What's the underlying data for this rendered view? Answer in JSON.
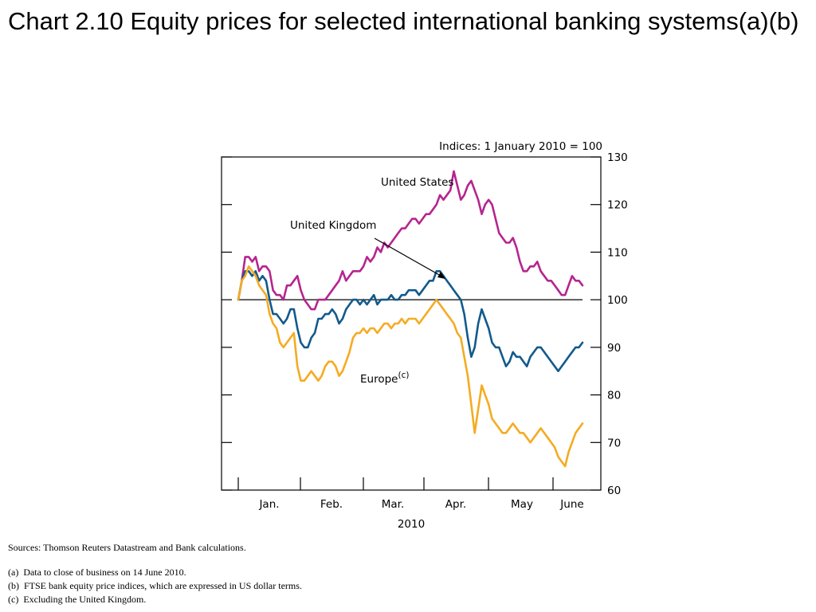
{
  "slide": {
    "title": "Chart 2.10  Equity prices for selected international banking systems(a)(b)",
    "sources": "Sources:  Thomson Reuters Datastream and Bank calculations.",
    "notes": [
      "(a)  Data to close of business on 14 June 2010.",
      "(b)  FTSE bank equity price indices, which are expressed in US dollar terms.",
      "(c)  Excluding the United Kingdom."
    ]
  },
  "chart_data": {
    "type": "line",
    "index_label": "Indices:  1 January 2010 = 100",
    "xlabel": "2010",
    "x_ticks": [
      "Jan.",
      "Feb.",
      "Mar.",
      "Apr.",
      "May",
      "June"
    ],
    "y_ticks": [
      "60",
      "70",
      "80",
      "90",
      "100",
      "110",
      "120",
      "130"
    ],
    "ylim": [
      60,
      130
    ],
    "reference_line": 100,
    "grid": false,
    "y_axis_side": "right",
    "annotations": [
      {
        "text": "United States",
        "series": "United States"
      },
      {
        "text": "United Kingdom",
        "series": "United Kingdom",
        "arrow": true
      },
      {
        "text": "Europe",
        "superscript": "(c)",
        "series": "Europe"
      }
    ],
    "series": [
      {
        "name": "United States",
        "color": "#b5258f",
        "values": [
          100,
          104,
          109,
          109,
          108,
          109,
          106,
          107,
          107,
          106,
          102,
          101,
          101,
          100,
          103,
          103,
          104,
          105,
          102,
          100,
          99,
          98,
          98,
          100,
          100,
          100,
          101,
          102,
          103,
          104,
          106,
          104,
          105,
          106,
          106,
          106,
          107,
          109,
          108,
          109,
          111,
          110,
          112,
          111,
          112,
          113,
          114,
          115,
          115,
          116,
          117,
          117,
          116,
          117,
          118,
          118,
          119,
          120,
          122,
          121,
          122,
          123,
          127,
          124,
          121,
          122,
          124,
          125,
          123,
          121,
          118,
          120,
          121,
          120,
          117,
          114,
          113,
          112,
          112,
          113,
          111,
          108,
          106,
          106,
          107,
          107,
          108,
          106,
          105,
          104,
          104,
          103,
          102,
          101,
          101,
          103,
          105,
          104,
          104,
          103
        ]
      },
      {
        "name": "United Kingdom",
        "color": "#125a8c",
        "values": [
          100,
          104,
          106,
          106,
          105,
          106,
          104,
          105,
          104,
          100,
          97,
          97,
          96,
          95,
          96,
          98,
          98,
          94,
          91,
          90,
          90,
          92,
          93,
          96,
          96,
          97,
          97,
          98,
          97,
          95,
          96,
          98,
          99,
          100,
          100,
          99,
          100,
          99,
          100,
          101,
          99,
          100,
          100,
          100,
          101,
          100,
          100,
          101,
          101,
          102,
          102,
          102,
          101,
          102,
          103,
          104,
          104,
          106,
          106,
          105,
          104,
          103,
          102,
          101,
          100,
          97,
          92,
          88,
          90,
          95,
          98,
          96,
          94,
          91,
          90,
          90,
          88,
          86,
          87,
          89,
          88,
          88,
          87,
          86,
          88,
          89,
          90,
          90,
          89,
          88,
          87,
          86,
          85,
          86,
          87,
          88,
          89,
          90,
          90,
          91
        ]
      },
      {
        "name": "Europe",
        "color": "#f5ab22",
        "values": [
          100,
          104,
          105,
          107,
          106,
          105,
          103,
          102,
          101,
          97,
          95,
          94,
          91,
          90,
          91,
          92,
          93,
          86,
          83,
          83,
          84,
          85,
          84,
          83,
          84,
          86,
          87,
          87,
          86,
          84,
          85,
          87,
          89,
          92,
          93,
          93,
          94,
          93,
          94,
          94,
          93,
          94,
          95,
          95,
          94,
          95,
          95,
          96,
          95,
          96,
          96,
          96,
          95,
          96,
          97,
          98,
          99,
          100,
          99,
          98,
          97,
          96,
          95,
          93,
          92,
          88,
          84,
          78,
          72,
          77,
          82,
          80,
          78,
          75,
          74,
          73,
          72,
          72,
          73,
          74,
          73,
          72,
          72,
          71,
          70,
          71,
          72,
          73,
          72,
          71,
          70,
          69,
          67,
          66,
          65,
          68,
          70,
          72,
          73,
          74
        ]
      }
    ]
  }
}
